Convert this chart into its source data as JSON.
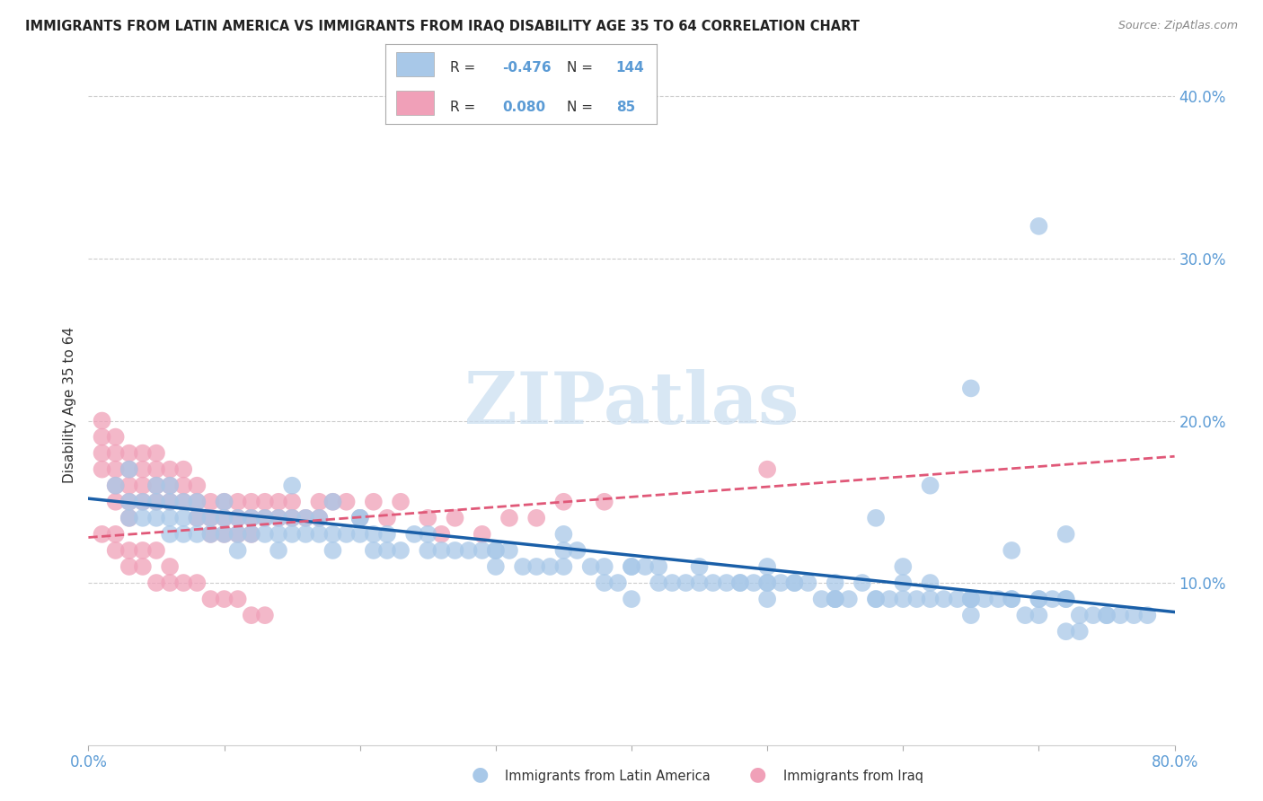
{
  "title": "IMMIGRANTS FROM LATIN AMERICA VS IMMIGRANTS FROM IRAQ DISABILITY AGE 35 TO 64 CORRELATION CHART",
  "source": "Source: ZipAtlas.com",
  "ylabel": "Disability Age 35 to 64",
  "xlim": [
    0.0,
    0.8
  ],
  "ylim": [
    0.0,
    0.42
  ],
  "grid_color": "#cccccc",
  "background_color": "#ffffff",
  "blue_color": "#a8c8e8",
  "pink_color": "#f0a0b8",
  "blue_line_color": "#1a5fa8",
  "pink_line_color": "#e05878",
  "tick_color": "#5b9bd5",
  "label_color": "#333333",
  "watermark_text": "ZIPatlas",
  "watermark_color": "#c8ddf0",
  "legend_R_blue": "-0.476",
  "legend_N_blue": "144",
  "legend_R_pink": "0.080",
  "legend_N_pink": "85",
  "blue_line_start_y": 0.152,
  "blue_line_end_y": 0.082,
  "pink_line_start_y": 0.128,
  "pink_line_end_y": 0.178,
  "blue_scatter_x": [
    0.02,
    0.03,
    0.03,
    0.04,
    0.04,
    0.05,
    0.05,
    0.05,
    0.06,
    0.06,
    0.06,
    0.07,
    0.07,
    0.07,
    0.08,
    0.08,
    0.08,
    0.09,
    0.09,
    0.1,
    0.1,
    0.1,
    0.11,
    0.11,
    0.11,
    0.12,
    0.12,
    0.13,
    0.13,
    0.14,
    0.14,
    0.14,
    0.15,
    0.15,
    0.16,
    0.16,
    0.17,
    0.17,
    0.18,
    0.18,
    0.19,
    0.2,
    0.2,
    0.21,
    0.21,
    0.22,
    0.22,
    0.23,
    0.24,
    0.25,
    0.25,
    0.26,
    0.27,
    0.28,
    0.29,
    0.3,
    0.3,
    0.31,
    0.32,
    0.33,
    0.34,
    0.35,
    0.36,
    0.37,
    0.38,
    0.39,
    0.4,
    0.41,
    0.42,
    0.43,
    0.44,
    0.45,
    0.46,
    0.47,
    0.48,
    0.49,
    0.5,
    0.5,
    0.51,
    0.52,
    0.53,
    0.54,
    0.55,
    0.56,
    0.57,
    0.58,
    0.59,
    0.6,
    0.61,
    0.62,
    0.63,
    0.64,
    0.65,
    0.66,
    0.67,
    0.68,
    0.69,
    0.7,
    0.71,
    0.72,
    0.73,
    0.74,
    0.75,
    0.76,
    0.77,
    0.78,
    0.03,
    0.06,
    0.15,
    0.18,
    0.2,
    0.3,
    0.35,
    0.38,
    0.4,
    0.42,
    0.48,
    0.52,
    0.55,
    0.58,
    0.62,
    0.65,
    0.68,
    0.7,
    0.72,
    0.75,
    0.65,
    0.7,
    0.58,
    0.62,
    0.68,
    0.72,
    0.73,
    0.5,
    0.55,
    0.6,
    0.65,
    0.7,
    0.72,
    0.35,
    0.4,
    0.45,
    0.5,
    0.55,
    0.6,
    0.65
  ],
  "blue_scatter_y": [
    0.16,
    0.15,
    0.14,
    0.15,
    0.14,
    0.15,
    0.14,
    0.16,
    0.14,
    0.15,
    0.13,
    0.14,
    0.13,
    0.15,
    0.14,
    0.13,
    0.15,
    0.14,
    0.13,
    0.14,
    0.13,
    0.15,
    0.13,
    0.14,
    0.12,
    0.14,
    0.13,
    0.14,
    0.13,
    0.14,
    0.13,
    0.12,
    0.13,
    0.14,
    0.13,
    0.14,
    0.13,
    0.14,
    0.13,
    0.12,
    0.13,
    0.13,
    0.14,
    0.13,
    0.12,
    0.13,
    0.12,
    0.12,
    0.13,
    0.13,
    0.12,
    0.12,
    0.12,
    0.12,
    0.12,
    0.12,
    0.11,
    0.12,
    0.11,
    0.11,
    0.11,
    0.12,
    0.12,
    0.11,
    0.11,
    0.1,
    0.11,
    0.11,
    0.11,
    0.1,
    0.1,
    0.11,
    0.1,
    0.1,
    0.1,
    0.1,
    0.1,
    0.11,
    0.1,
    0.1,
    0.1,
    0.09,
    0.1,
    0.09,
    0.1,
    0.09,
    0.09,
    0.1,
    0.09,
    0.09,
    0.09,
    0.09,
    0.09,
    0.09,
    0.09,
    0.09,
    0.08,
    0.09,
    0.09,
    0.09,
    0.08,
    0.08,
    0.08,
    0.08,
    0.08,
    0.08,
    0.17,
    0.16,
    0.16,
    0.15,
    0.14,
    0.12,
    0.11,
    0.1,
    0.11,
    0.1,
    0.1,
    0.1,
    0.09,
    0.09,
    0.1,
    0.09,
    0.09,
    0.09,
    0.09,
    0.08,
    0.22,
    0.32,
    0.14,
    0.16,
    0.12,
    0.13,
    0.07,
    0.1,
    0.09,
    0.11,
    0.08,
    0.08,
    0.07,
    0.13,
    0.09,
    0.1,
    0.09,
    0.09,
    0.09,
    0.09
  ],
  "pink_scatter_x": [
    0.01,
    0.01,
    0.01,
    0.01,
    0.02,
    0.02,
    0.02,
    0.02,
    0.02,
    0.03,
    0.03,
    0.03,
    0.03,
    0.03,
    0.04,
    0.04,
    0.04,
    0.04,
    0.05,
    0.05,
    0.05,
    0.05,
    0.06,
    0.06,
    0.06,
    0.07,
    0.07,
    0.07,
    0.08,
    0.08,
    0.08,
    0.09,
    0.09,
    0.09,
    0.1,
    0.1,
    0.1,
    0.11,
    0.11,
    0.11,
    0.12,
    0.12,
    0.12,
    0.13,
    0.13,
    0.14,
    0.14,
    0.15,
    0.15,
    0.16,
    0.17,
    0.17,
    0.18,
    0.19,
    0.2,
    0.21,
    0.22,
    0.23,
    0.25,
    0.26,
    0.27,
    0.29,
    0.31,
    0.33,
    0.35,
    0.38,
    0.01,
    0.02,
    0.02,
    0.03,
    0.03,
    0.04,
    0.04,
    0.05,
    0.05,
    0.06,
    0.06,
    0.07,
    0.08,
    0.09,
    0.1,
    0.11,
    0.12,
    0.13,
    0.5
  ],
  "pink_scatter_y": [
    0.2,
    0.19,
    0.18,
    0.17,
    0.19,
    0.18,
    0.17,
    0.16,
    0.15,
    0.18,
    0.17,
    0.16,
    0.15,
    0.14,
    0.18,
    0.17,
    0.16,
    0.15,
    0.18,
    0.17,
    0.16,
    0.15,
    0.17,
    0.16,
    0.15,
    0.17,
    0.16,
    0.15,
    0.16,
    0.15,
    0.14,
    0.15,
    0.14,
    0.13,
    0.15,
    0.14,
    0.13,
    0.15,
    0.14,
    0.13,
    0.15,
    0.14,
    0.13,
    0.15,
    0.14,
    0.14,
    0.15,
    0.15,
    0.14,
    0.14,
    0.15,
    0.14,
    0.15,
    0.15,
    0.14,
    0.15,
    0.14,
    0.15,
    0.14,
    0.13,
    0.14,
    0.13,
    0.14,
    0.14,
    0.15,
    0.15,
    0.13,
    0.13,
    0.12,
    0.12,
    0.11,
    0.12,
    0.11,
    0.12,
    0.1,
    0.11,
    0.1,
    0.1,
    0.1,
    0.09,
    0.09,
    0.09,
    0.08,
    0.08,
    0.17
  ]
}
